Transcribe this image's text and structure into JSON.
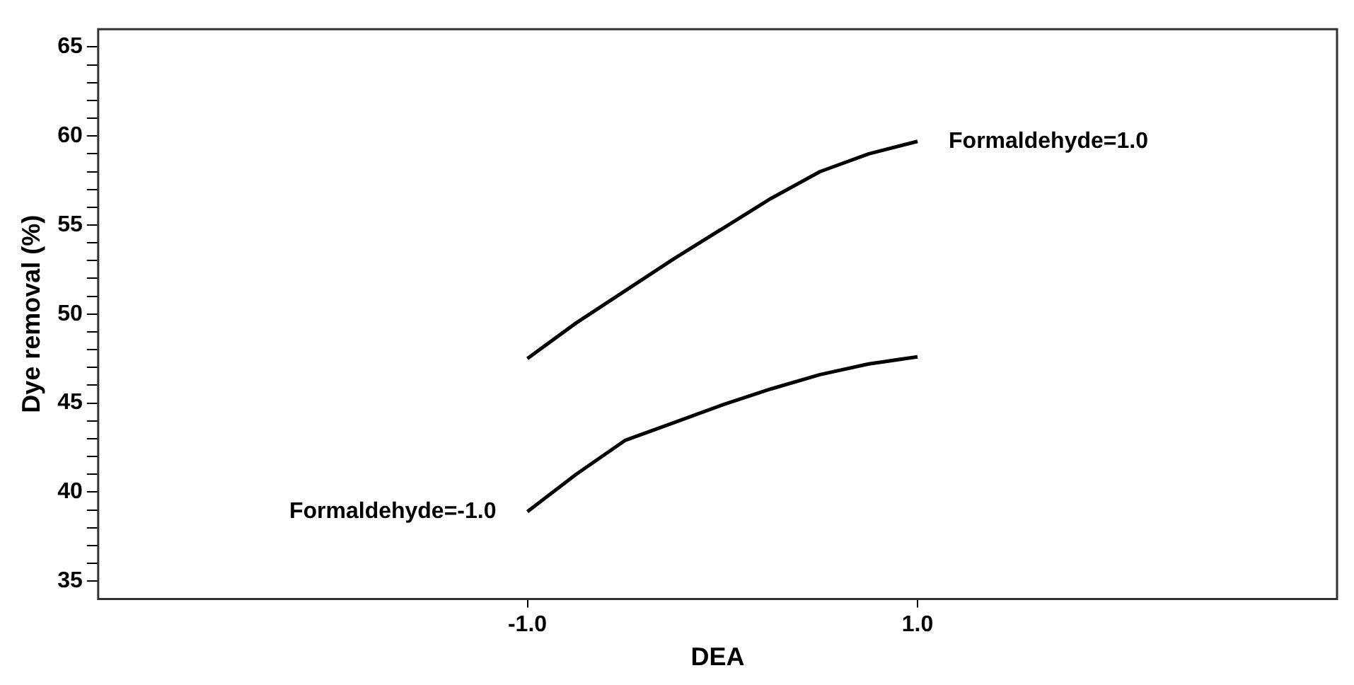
{
  "chart_data": {
    "type": "line",
    "xlabel": "DEA",
    "ylabel": "Dye removal (%)",
    "xlim": [
      -3.2,
      3.15
    ],
    "xticks": [
      {
        "value": -1,
        "label": "-1.0"
      },
      {
        "value": 1,
        "label": "1.0"
      }
    ],
    "ylim": [
      34,
      66
    ],
    "yticks": [
      35,
      {
        "value": 36,
        "label": null
      },
      {
        "value": 37,
        "label": null
      },
      {
        "value": 38,
        "label": null
      },
      {
        "value": 39,
        "label": null
      },
      40,
      {
        "value": 41,
        "label": null
      },
      {
        "value": 42,
        "label": null
      },
      {
        "value": 43,
        "label": null
      },
      {
        "value": 44,
        "label": null
      },
      45,
      {
        "value": 46,
        "label": null
      },
      {
        "value": 47,
        "label": null
      },
      {
        "value": 48,
        "label": null
      },
      {
        "value": 49,
        "label": null
      },
      50,
      {
        "value": 51,
        "label": null
      },
      {
        "value": 52,
        "label": null
      },
      {
        "value": 53,
        "label": null
      },
      {
        "value": 54,
        "label": null
      },
      55,
      {
        "value": 56,
        "label": null
      },
      {
        "value": 57,
        "label": null
      },
      {
        "value": 58,
        "label": null
      },
      {
        "value": 59,
        "label": null
      },
      60,
      {
        "value": 61,
        "label": null
      },
      {
        "value": 62,
        "label": null
      },
      {
        "value": 63,
        "label": null
      },
      {
        "value": 64,
        "label": null
      },
      65
    ],
    "x": [
      -1,
      -0.75,
      -0.5,
      -0.25,
      0,
      0.25,
      0.5,
      0.75,
      1
    ],
    "series": [
      {
        "color": "#000000",
        "values": [
          47.5,
          49.5,
          51.3,
          53.1,
          54.8,
          56.5,
          58.0,
          59.0,
          59.7
        ]
      },
      {
        "color": "#000000",
        "values": [
          38.9,
          41.0,
          42.9,
          43.9,
          44.9,
          45.8,
          46.6,
          47.2,
          47.6
        ]
      }
    ],
    "annotations": [
      {
        "text": "Formaldehyde=1.0",
        "x": 1,
        "y": 59.7
      },
      {
        "text": "Formaldehyde=-1.0",
        "x": -1,
        "y": 38.9
      }
    ],
    "marker": "none",
    "line_style": "solid",
    "grid": false,
    "legend": false
  }
}
